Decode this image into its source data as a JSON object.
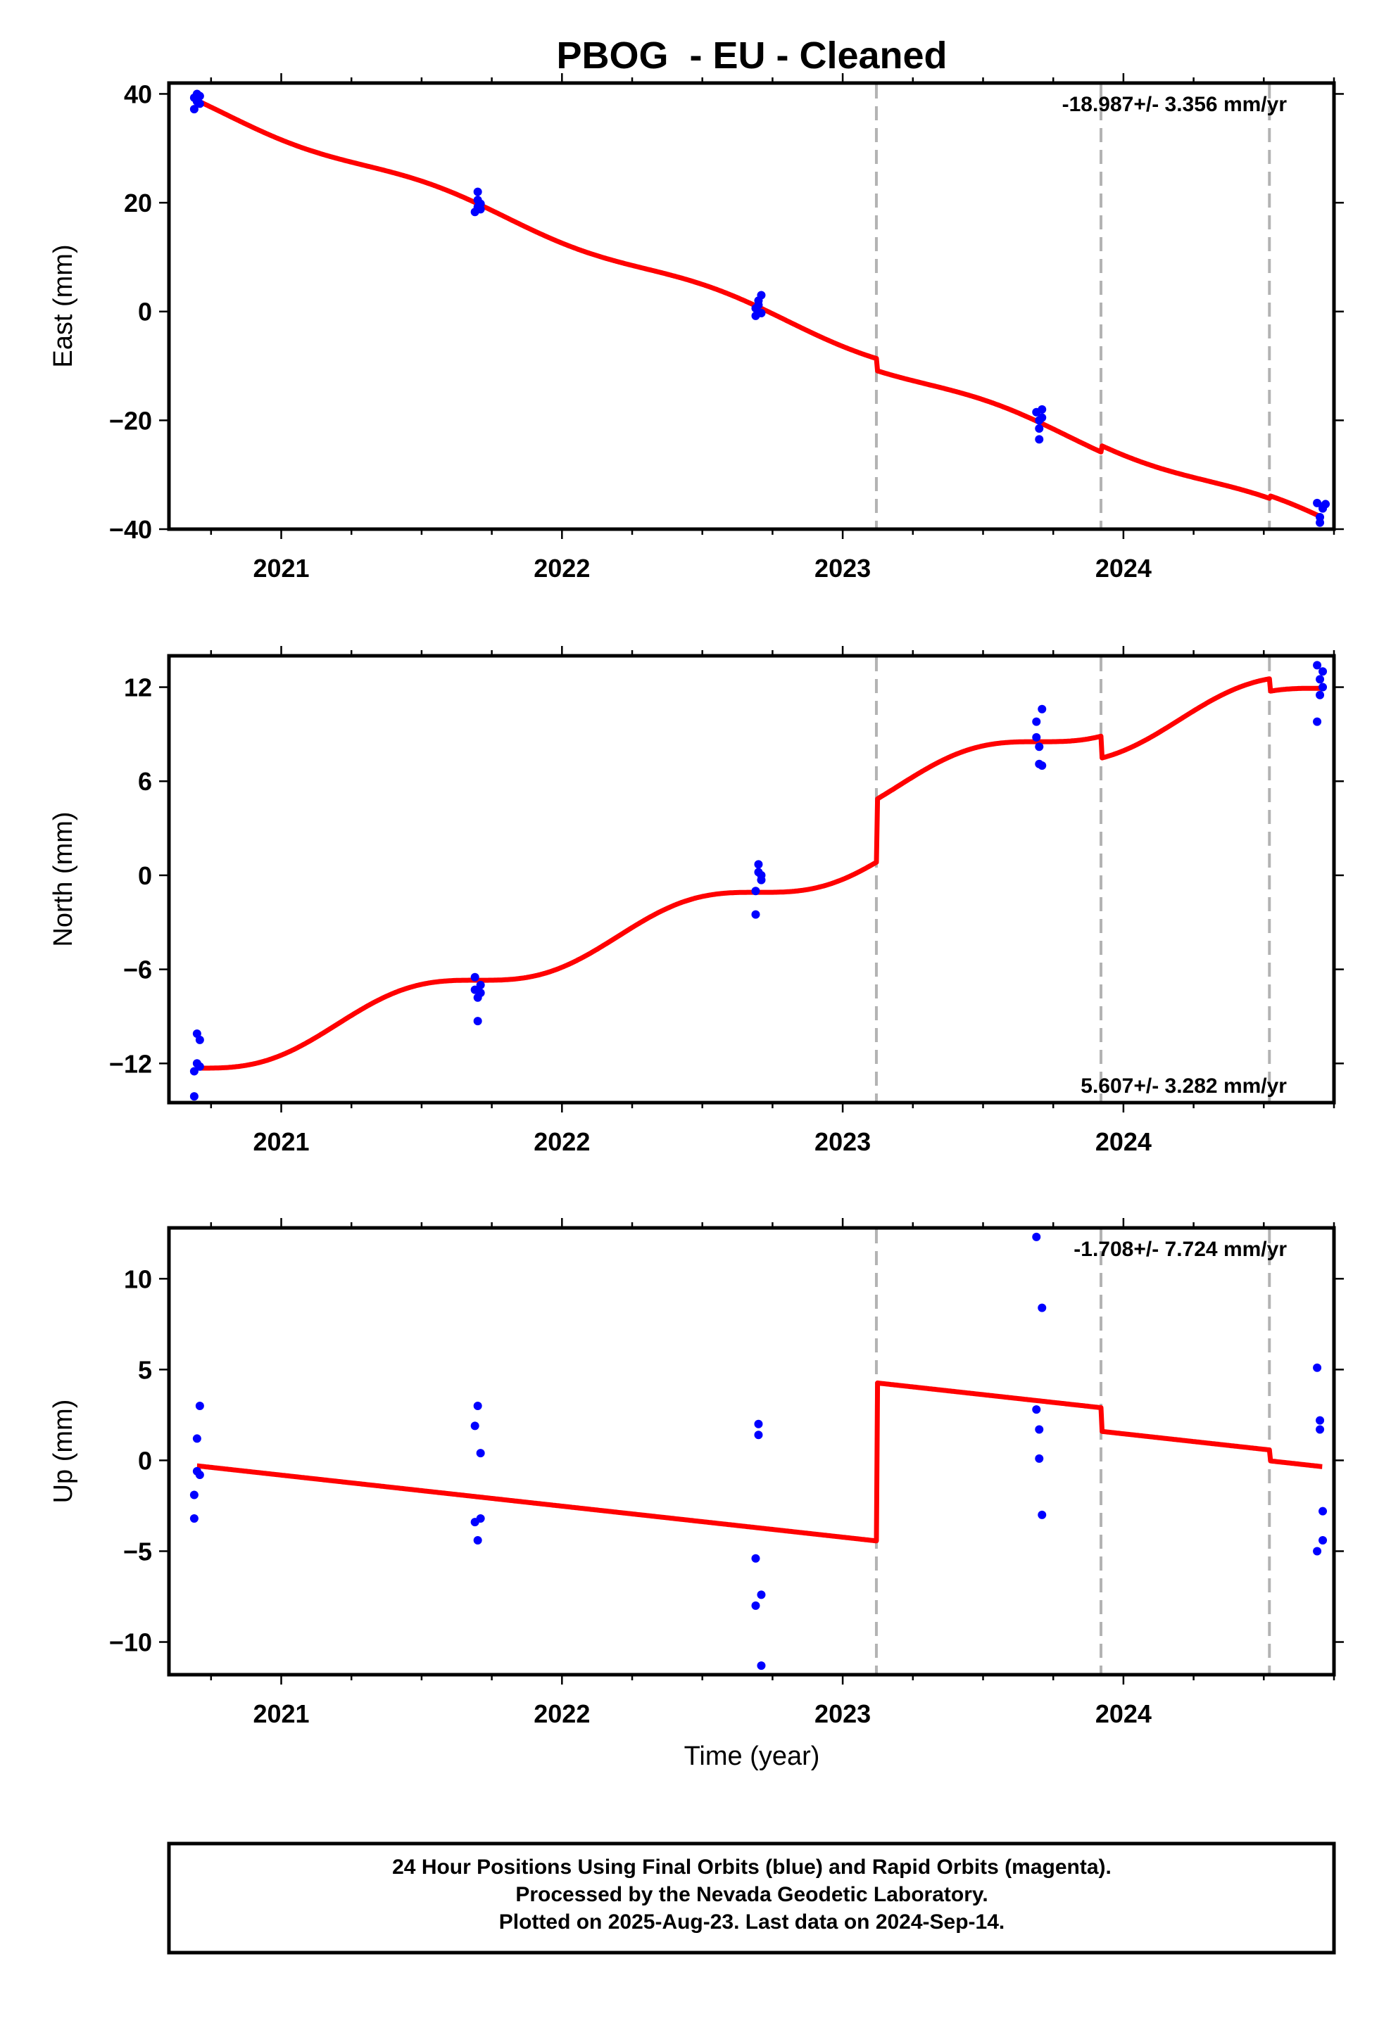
{
  "colors": {
    "points": "#0000ff",
    "fit": "#ff0000",
    "offsets": "#b3b3b3",
    "frame": "#000000"
  },
  "chart_data": {
    "type": "scatter",
    "title": "PBOG  - EU - Cleaned",
    "xlabel": "Time (year)",
    "xlim": [
      2020.6,
      2024.75
    ],
    "x_ticks": [
      2021,
      2022,
      2023,
      2024
    ],
    "x_tick_labels": [
      "2021",
      "2022",
      "2023",
      "2024"
    ],
    "offset_epochs": [
      2023.12,
      2023.92,
      2024.52
    ],
    "panels": [
      {
        "name": "east",
        "ylabel": "East (mm)",
        "ylim": [
          -40,
          42
        ],
        "y_ticks": [
          -40,
          -20,
          0,
          20,
          40
        ],
        "y_tick_labels": [
          "−40",
          "−20",
          "0",
          "20",
          "40"
        ],
        "rate_label": "-18.987+/- 3.356 mm/yr",
        "rate_position": "top-right",
        "points": [
          [
            2020.69,
            37.2
          ],
          [
            2020.69,
            39.3
          ],
          [
            2020.7,
            38.6
          ],
          [
            2020.7,
            40.0
          ],
          [
            2020.71,
            38.2
          ],
          [
            2020.71,
            39.6
          ],
          [
            2021.69,
            18.3
          ],
          [
            2021.7,
            19.2
          ],
          [
            2021.7,
            20.5
          ],
          [
            2021.7,
            22.0
          ],
          [
            2021.71,
            18.8
          ],
          [
            2021.71,
            19.8
          ],
          [
            2022.69,
            -0.8
          ],
          [
            2022.69,
            0.6
          ],
          [
            2022.7,
            1.2
          ],
          [
            2022.7,
            2.0
          ],
          [
            2022.71,
            3.0
          ],
          [
            2022.71,
            -0.3
          ],
          [
            2023.69,
            -18.5
          ],
          [
            2023.7,
            -20.0
          ],
          [
            2023.7,
            -21.5
          ],
          [
            2023.7,
            -23.5
          ],
          [
            2023.71,
            -18.0
          ],
          [
            2023.71,
            -19.5
          ],
          [
            2024.69,
            -35.2
          ],
          [
            2024.7,
            -37.8
          ],
          [
            2024.7,
            -38.8
          ],
          [
            2024.71,
            -36.2
          ],
          [
            2024.71,
            -35.8
          ],
          [
            2024.72,
            -35.4
          ]
        ],
        "fit": {
          "start": 2020.7,
          "end": 2024.71,
          "start_value": 38.8,
          "rate_mm_per_yr": -18.987,
          "annual_amplitude": 1.0,
          "annual_phase": 0.3,
          "offsets": [
            -2.2,
            1.2,
            0.5
          ]
        }
      },
      {
        "name": "north",
        "ylabel": "North (mm)",
        "ylim": [
          -14.5,
          14
        ],
        "y_ticks": [
          -12,
          -6,
          0,
          6,
          12
        ],
        "y_tick_labels": [
          "−12",
          "−6",
          "0",
          "6",
          "12"
        ],
        "rate_label": "5.607+/- 3.282 mm/yr",
        "rate_position": "bottom-right",
        "points": [
          [
            2020.69,
            -14.1
          ],
          [
            2020.69,
            -12.5
          ],
          [
            2020.7,
            -10.1
          ],
          [
            2020.7,
            -12.0
          ],
          [
            2020.71,
            -10.5
          ],
          [
            2020.71,
            -12.2
          ],
          [
            2021.69,
            -6.5
          ],
          [
            2021.69,
            -7.3
          ],
          [
            2021.7,
            -7.8
          ],
          [
            2021.7,
            -9.3
          ],
          [
            2021.71,
            -7.0
          ],
          [
            2021.71,
            -7.5
          ],
          [
            2022.69,
            -2.5
          ],
          [
            2022.69,
            -1.0
          ],
          [
            2022.7,
            0.2
          ],
          [
            2022.7,
            0.7
          ],
          [
            2022.71,
            0.0
          ],
          [
            2022.71,
            -0.3
          ],
          [
            2023.69,
            9.8
          ],
          [
            2023.69,
            8.8
          ],
          [
            2023.7,
            8.2
          ],
          [
            2023.7,
            7.1
          ],
          [
            2023.71,
            10.6
          ],
          [
            2023.71,
            7.0
          ],
          [
            2024.69,
            9.8
          ],
          [
            2024.69,
            13.4
          ],
          [
            2024.7,
            11.5
          ],
          [
            2024.7,
            12.5
          ],
          [
            2024.71,
            12.0
          ],
          [
            2024.71,
            13.0
          ]
        ],
        "fit": {
          "start": 2020.7,
          "end": 2024.71,
          "start_value": -12.3,
          "rate_mm_per_yr": 5.607,
          "annual_amplitude": 0.9,
          "annual_phase": 0.2,
          "offsets": [
            4.0,
            -1.4,
            -0.8
          ]
        }
      },
      {
        "name": "up",
        "ylabel": "Up (mm)",
        "ylim": [
          -11.8,
          12.8
        ],
        "y_ticks": [
          -10,
          -5,
          0,
          5,
          10
        ],
        "y_tick_labels": [
          "−10",
          "−5",
          "0",
          "5",
          "10"
        ],
        "rate_label": "-1.708+/- 7.724 mm/yr",
        "rate_position": "top-right",
        "points": [
          [
            2020.69,
            -3.2
          ],
          [
            2020.69,
            -1.9
          ],
          [
            2020.7,
            -0.6
          ],
          [
            2020.7,
            1.2
          ],
          [
            2020.71,
            3.0
          ],
          [
            2020.71,
            -0.8
          ],
          [
            2021.69,
            -3.4
          ],
          [
            2021.69,
            1.9
          ],
          [
            2021.7,
            3.0
          ],
          [
            2021.7,
            -4.4
          ],
          [
            2021.71,
            -3.2
          ],
          [
            2021.71,
            0.4
          ],
          [
            2022.69,
            -5.4
          ],
          [
            2022.69,
            -8.0
          ],
          [
            2022.7,
            1.4
          ],
          [
            2022.7,
            2.0
          ],
          [
            2022.71,
            -7.4
          ],
          [
            2022.71,
            -11.3
          ],
          [
            2023.69,
            2.8
          ],
          [
            2023.69,
            12.3
          ],
          [
            2023.7,
            1.7
          ],
          [
            2023.7,
            0.1
          ],
          [
            2023.71,
            -3.0
          ],
          [
            2023.71,
            8.4
          ],
          [
            2024.69,
            5.1
          ],
          [
            2024.69,
            -5.0
          ],
          [
            2024.7,
            2.2
          ],
          [
            2024.7,
            1.7
          ],
          [
            2024.71,
            -2.8
          ],
          [
            2024.71,
            -4.4
          ]
        ],
        "fit": {
          "start": 2020.7,
          "end": 2024.71,
          "start_value": -0.3,
          "rate_mm_per_yr": -1.708,
          "annual_amplitude": 0,
          "annual_phase": 0,
          "offsets": [
            8.7,
            -1.3,
            -0.6
          ]
        }
      }
    ],
    "footer": [
      "24 Hour Positions Using Final Orbits (blue) and Rapid Orbits (magenta).",
      "Processed by the Nevada Geodetic Laboratory.",
      "Plotted on 2025-Aug-23. Last data on 2024-Sep-14."
    ]
  }
}
